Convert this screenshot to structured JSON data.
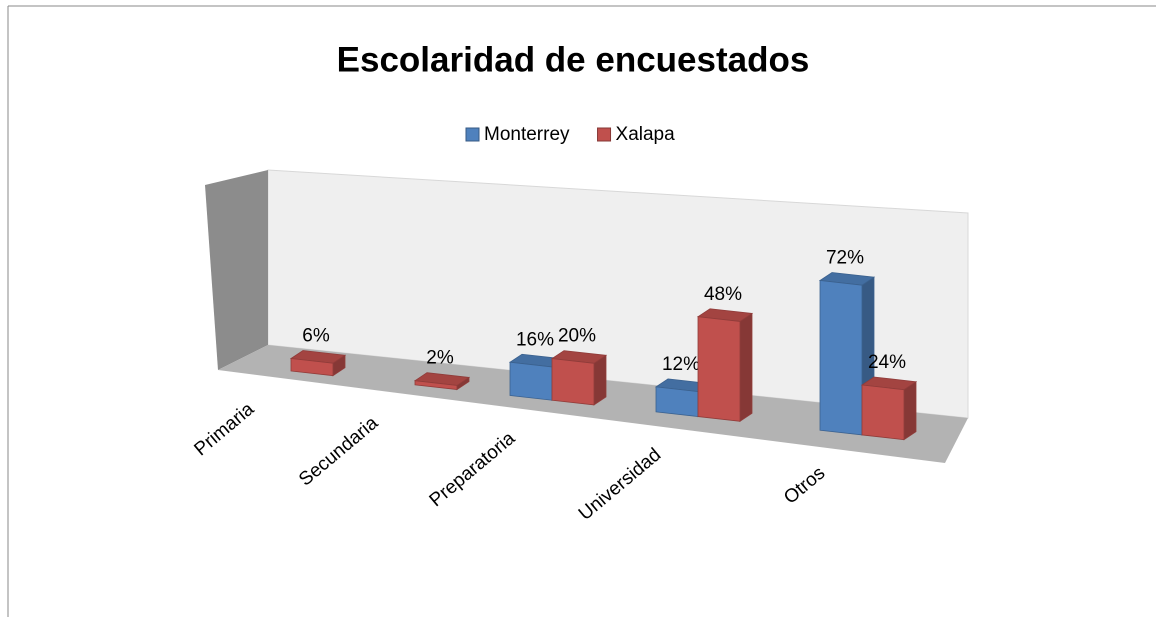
{
  "chart_data": {
    "type": "bar3d",
    "title": "Escolaridad de encuestados",
    "categories": [
      "Primaria",
      "Secundaria",
      "Preparatoria",
      "Universidad",
      "Otros"
    ],
    "series": [
      {
        "name": "Monterrey",
        "color": "#4f81bd",
        "values": [
          null,
          null,
          16,
          12,
          72
        ],
        "value_labels": [
          null,
          null,
          "16%",
          "12%",
          "72%"
        ]
      },
      {
        "name": "Xalapa",
        "color": "#c0504d",
        "values": [
          6,
          2,
          20,
          48,
          24
        ],
        "value_labels": [
          "6%",
          "2%",
          "20%",
          "48%",
          "24%"
        ]
      }
    ],
    "legend": "top"
  }
}
